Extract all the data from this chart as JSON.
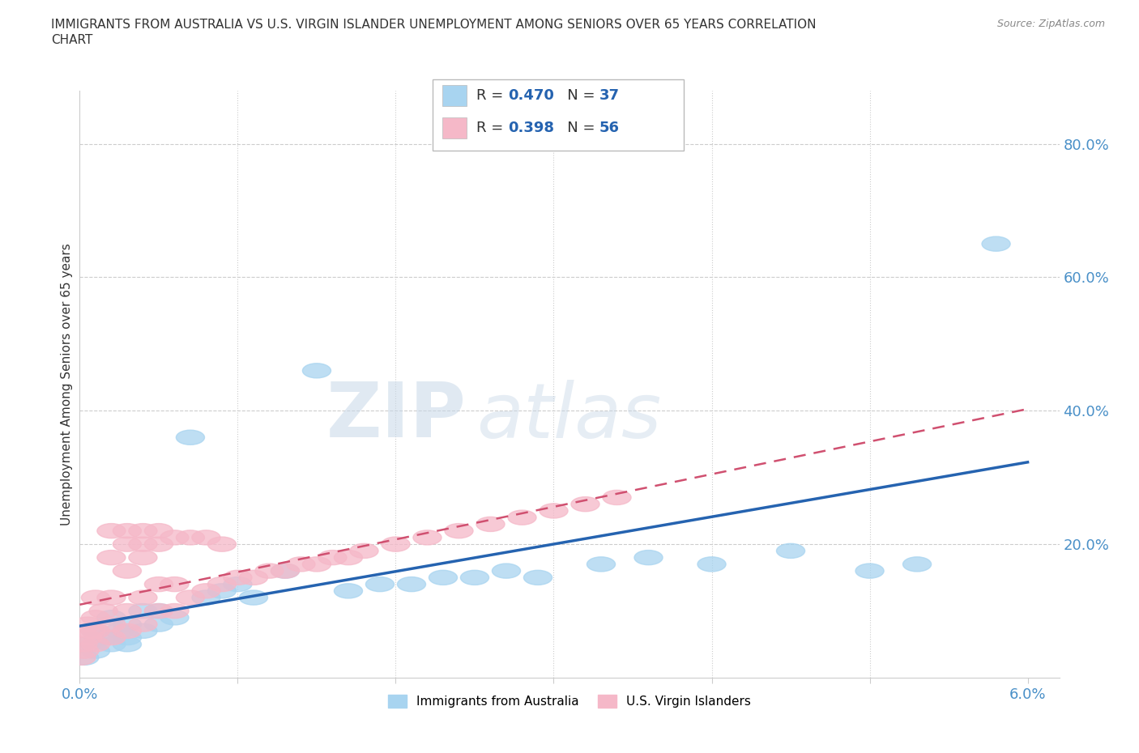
{
  "title_line1": "IMMIGRANTS FROM AUSTRALIA VS U.S. VIRGIN ISLANDER UNEMPLOYMENT AMONG SENIORS OVER 65 YEARS CORRELATION",
  "title_line2": "CHART",
  "source": "Source: ZipAtlas.com",
  "ylabel": "Unemployment Among Seniors over 65 years",
  "xlim": [
    0.0,
    0.062
  ],
  "ylim": [
    0.0,
    0.88
  ],
  "blue_R": 0.47,
  "blue_N": 37,
  "pink_R": 0.398,
  "pink_N": 56,
  "blue_color": "#A8D4F0",
  "pink_color": "#F5B8C8",
  "blue_line_color": "#2563B0",
  "pink_line_color": "#D05070",
  "text_color_dark": "#333333",
  "text_color_blue": "#2563B0",
  "axis_color": "#4A90C8",
  "grid_color": "#CCCCCC",
  "blue_scatter_x": [
    0.0003,
    0.0005,
    0.001,
    0.001,
    0.0015,
    0.002,
    0.002,
    0.0025,
    0.003,
    0.003,
    0.003,
    0.004,
    0.004,
    0.005,
    0.005,
    0.006,
    0.007,
    0.008,
    0.009,
    0.01,
    0.011,
    0.013,
    0.015,
    0.017,
    0.019,
    0.021,
    0.023,
    0.025,
    0.027,
    0.029,
    0.033,
    0.036,
    0.04,
    0.045,
    0.05,
    0.053,
    0.058
  ],
  "blue_scatter_y": [
    0.03,
    0.05,
    0.04,
    0.07,
    0.06,
    0.05,
    0.09,
    0.07,
    0.06,
    0.05,
    0.08,
    0.07,
    0.1,
    0.08,
    0.1,
    0.09,
    0.36,
    0.12,
    0.13,
    0.14,
    0.12,
    0.16,
    0.46,
    0.13,
    0.14,
    0.14,
    0.15,
    0.15,
    0.16,
    0.15,
    0.17,
    0.18,
    0.17,
    0.19,
    0.16,
    0.17,
    0.65
  ],
  "pink_scatter_x": [
    0.0001,
    0.0002,
    0.0003,
    0.0005,
    0.0005,
    0.0007,
    0.001,
    0.001,
    0.001,
    0.001,
    0.0015,
    0.002,
    0.002,
    0.002,
    0.002,
    0.002,
    0.003,
    0.003,
    0.003,
    0.003,
    0.003,
    0.004,
    0.004,
    0.004,
    0.004,
    0.004,
    0.005,
    0.005,
    0.005,
    0.005,
    0.006,
    0.006,
    0.006,
    0.007,
    0.007,
    0.008,
    0.008,
    0.009,
    0.009,
    0.01,
    0.011,
    0.012,
    0.013,
    0.014,
    0.015,
    0.016,
    0.017,
    0.018,
    0.02,
    0.022,
    0.024,
    0.026,
    0.028,
    0.03,
    0.032,
    0.034
  ],
  "pink_scatter_y": [
    0.03,
    0.05,
    0.04,
    0.06,
    0.08,
    0.07,
    0.09,
    0.12,
    0.07,
    0.05,
    0.1,
    0.08,
    0.12,
    0.18,
    0.06,
    0.22,
    0.07,
    0.1,
    0.16,
    0.2,
    0.22,
    0.08,
    0.12,
    0.18,
    0.22,
    0.2,
    0.1,
    0.14,
    0.2,
    0.22,
    0.1,
    0.14,
    0.21,
    0.12,
    0.21,
    0.13,
    0.21,
    0.14,
    0.2,
    0.15,
    0.15,
    0.16,
    0.16,
    0.17,
    0.17,
    0.18,
    0.18,
    0.19,
    0.2,
    0.21,
    0.22,
    0.23,
    0.24,
    0.25,
    0.26,
    0.27
  ]
}
